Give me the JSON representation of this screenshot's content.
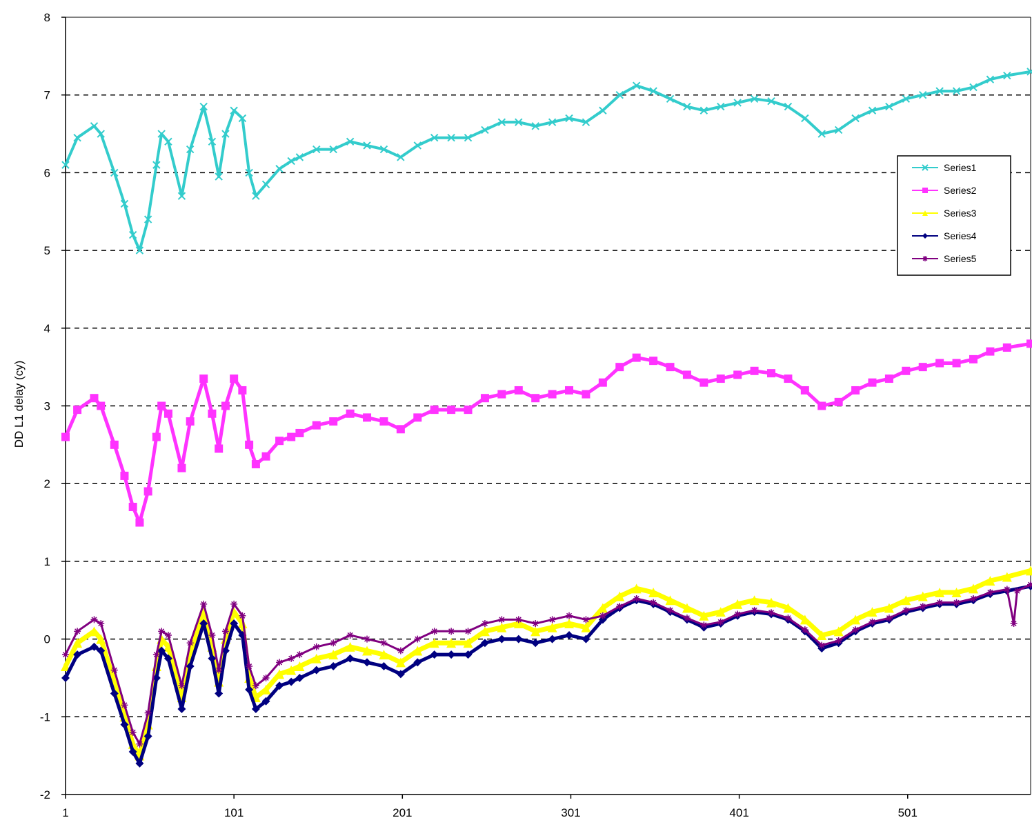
{
  "chart_data": {
    "type": "line",
    "title": "",
    "xlabel": "",
    "ylabel": "DD L1 delay (cy)",
    "xlim": [
      1,
      574
    ],
    "ylim": [
      -2,
      8
    ],
    "x_ticks": [
      1,
      101,
      201,
      301,
      401,
      501
    ],
    "x_tick_labels": [
      "1",
      "101",
      "201",
      "301",
      "401",
      "501"
    ],
    "y_ticks": [
      -2,
      -1,
      0,
      1,
      2,
      3,
      4,
      5,
      6,
      7,
      8
    ],
    "y_tick_labels": [
      "-2",
      "-1",
      "0",
      "1",
      "2",
      "3",
      "4",
      "5",
      "6",
      "7",
      "8"
    ],
    "grid": "horizontal dashed",
    "legend_position": "right",
    "series": [
      {
        "name": "Series1",
        "color": "#33cccc",
        "marker": "cross",
        "x": [
          1,
          8,
          18,
          22,
          30,
          36,
          41,
          45,
          50,
          55,
          58,
          62,
          70,
          75,
          83,
          88,
          92,
          96,
          101,
          106,
          110,
          114,
          120,
          128,
          135,
          140,
          150,
          160,
          170,
          180,
          190,
          200,
          210,
          220,
          230,
          240,
          250,
          260,
          270,
          280,
          290,
          300,
          310,
          320,
          330,
          340,
          350,
          360,
          370,
          380,
          390,
          400,
          410,
          420,
          430,
          440,
          450,
          460,
          470,
          480,
          490,
          500,
          510,
          520,
          530,
          540,
          550,
          560,
          574
        ],
        "y": [
          6.1,
          6.45,
          6.6,
          6.5,
          6.0,
          5.6,
          5.2,
          5.0,
          5.4,
          6.1,
          6.5,
          6.4,
          5.7,
          6.3,
          6.85,
          6.4,
          5.95,
          6.5,
          6.8,
          6.7,
          6.0,
          5.7,
          5.85,
          6.05,
          6.15,
          6.2,
          6.3,
          6.3,
          6.4,
          6.35,
          6.3,
          6.2,
          6.35,
          6.45,
          6.45,
          6.45,
          6.55,
          6.65,
          6.65,
          6.6,
          6.65,
          6.7,
          6.65,
          6.8,
          7.0,
          7.12,
          7.05,
          6.95,
          6.85,
          6.8,
          6.85,
          6.9,
          6.95,
          6.92,
          6.85,
          6.7,
          6.5,
          6.55,
          6.7,
          6.8,
          6.85,
          6.95,
          7.0,
          7.05,
          7.05,
          7.1,
          7.2,
          7.25,
          7.3
        ]
      },
      {
        "name": "Series2",
        "color": "#ff33ff",
        "marker": "square",
        "x": [
          1,
          8,
          18,
          22,
          30,
          36,
          41,
          45,
          50,
          55,
          58,
          62,
          70,
          75,
          83,
          88,
          92,
          96,
          101,
          106,
          110,
          114,
          120,
          128,
          135,
          140,
          150,
          160,
          170,
          180,
          190,
          200,
          210,
          220,
          230,
          240,
          250,
          260,
          270,
          280,
          290,
          300,
          310,
          320,
          330,
          340,
          350,
          360,
          370,
          380,
          390,
          400,
          410,
          420,
          430,
          440,
          450,
          460,
          470,
          480,
          490,
          500,
          510,
          520,
          530,
          540,
          550,
          560,
          574
        ],
        "y": [
          2.6,
          2.95,
          3.1,
          3.0,
          2.5,
          2.1,
          1.7,
          1.5,
          1.9,
          2.6,
          3.0,
          2.9,
          2.2,
          2.8,
          3.35,
          2.9,
          2.45,
          3.0,
          3.35,
          3.2,
          2.5,
          2.25,
          2.35,
          2.55,
          2.6,
          2.65,
          2.75,
          2.8,
          2.9,
          2.85,
          2.8,
          2.7,
          2.85,
          2.95,
          2.95,
          2.95,
          3.1,
          3.15,
          3.2,
          3.1,
          3.15,
          3.2,
          3.15,
          3.3,
          3.5,
          3.62,
          3.58,
          3.5,
          3.4,
          3.3,
          3.35,
          3.4,
          3.45,
          3.42,
          3.35,
          3.2,
          3.0,
          3.05,
          3.2,
          3.3,
          3.35,
          3.45,
          3.5,
          3.55,
          3.55,
          3.6,
          3.7,
          3.75,
          3.8
        ]
      },
      {
        "name": "Series3",
        "color": "#ffff00",
        "marker": "triangle",
        "x": [
          1,
          8,
          18,
          22,
          30,
          36,
          41,
          45,
          50,
          55,
          58,
          62,
          70,
          75,
          83,
          88,
          92,
          96,
          101,
          106,
          110,
          114,
          120,
          128,
          135,
          140,
          150,
          160,
          170,
          180,
          190,
          200,
          210,
          220,
          230,
          240,
          250,
          260,
          270,
          280,
          290,
          300,
          310,
          320,
          330,
          340,
          350,
          360,
          370,
          380,
          390,
          400,
          410,
          420,
          430,
          440,
          450,
          460,
          470,
          480,
          490,
          500,
          510,
          520,
          530,
          540,
          550,
          560,
          574
        ],
        "y": [
          -0.35,
          -0.05,
          0.1,
          0.0,
          -0.55,
          -1.0,
          -1.35,
          -1.5,
          -1.1,
          -0.35,
          0.0,
          -0.1,
          -0.75,
          -0.2,
          0.35,
          -0.1,
          -0.55,
          0.0,
          0.35,
          0.2,
          -0.5,
          -0.75,
          -0.65,
          -0.45,
          -0.4,
          -0.35,
          -0.25,
          -0.2,
          -0.1,
          -0.15,
          -0.2,
          -0.3,
          -0.15,
          -0.05,
          -0.05,
          -0.05,
          0.1,
          0.15,
          0.2,
          0.1,
          0.15,
          0.2,
          0.15,
          0.4,
          0.55,
          0.65,
          0.6,
          0.5,
          0.4,
          0.3,
          0.35,
          0.45,
          0.5,
          0.47,
          0.4,
          0.25,
          0.05,
          0.1,
          0.25,
          0.35,
          0.4,
          0.5,
          0.55,
          0.6,
          0.6,
          0.65,
          0.75,
          0.8,
          0.88
        ]
      },
      {
        "name": "Series4",
        "color": "#000080",
        "marker": "diamond",
        "x": [
          1,
          8,
          18,
          22,
          30,
          36,
          41,
          45,
          50,
          55,
          58,
          62,
          70,
          75,
          83,
          88,
          92,
          96,
          101,
          106,
          110,
          114,
          120,
          128,
          135,
          140,
          150,
          160,
          170,
          180,
          190,
          200,
          210,
          220,
          230,
          240,
          250,
          260,
          270,
          280,
          290,
          300,
          310,
          320,
          330,
          340,
          350,
          360,
          370,
          380,
          390,
          400,
          410,
          420,
          430,
          440,
          450,
          460,
          470,
          480,
          490,
          500,
          510,
          520,
          530,
          540,
          550,
          560,
          574
        ],
        "y": [
          -0.5,
          -0.2,
          -0.1,
          -0.15,
          -0.7,
          -1.1,
          -1.45,
          -1.6,
          -1.25,
          -0.5,
          -0.15,
          -0.25,
          -0.9,
          -0.35,
          0.2,
          -0.25,
          -0.7,
          -0.15,
          0.2,
          0.05,
          -0.65,
          -0.9,
          -0.8,
          -0.6,
          -0.55,
          -0.5,
          -0.4,
          -0.35,
          -0.25,
          -0.3,
          -0.35,
          -0.45,
          -0.3,
          -0.2,
          -0.2,
          -0.2,
          -0.05,
          0.0,
          0.0,
          -0.05,
          0.0,
          0.05,
          0.0,
          0.25,
          0.4,
          0.5,
          0.45,
          0.35,
          0.25,
          0.15,
          0.2,
          0.3,
          0.35,
          0.32,
          0.25,
          0.1,
          -0.12,
          -0.05,
          0.1,
          0.2,
          0.25,
          0.35,
          0.4,
          0.45,
          0.45,
          0.5,
          0.58,
          0.62,
          0.68
        ]
      },
      {
        "name": "Series5",
        "color": "#800080",
        "marker": "star",
        "x": [
          1,
          8,
          18,
          22,
          30,
          36,
          41,
          45,
          50,
          55,
          58,
          62,
          70,
          75,
          83,
          88,
          92,
          96,
          101,
          106,
          110,
          114,
          120,
          128,
          135,
          140,
          150,
          160,
          170,
          180,
          190,
          200,
          210,
          220,
          230,
          240,
          250,
          260,
          270,
          280,
          290,
          300,
          310,
          320,
          330,
          340,
          350,
          360,
          370,
          380,
          390,
          400,
          410,
          420,
          430,
          440,
          450,
          460,
          470,
          480,
          490,
          500,
          510,
          520,
          530,
          540,
          550,
          560,
          564,
          566,
          574
        ],
        "y": [
          -0.2,
          0.1,
          0.25,
          0.2,
          -0.4,
          -0.85,
          -1.2,
          -1.35,
          -0.95,
          -0.2,
          0.1,
          0.05,
          -0.6,
          -0.05,
          0.45,
          0.05,
          -0.4,
          0.1,
          0.45,
          0.3,
          -0.35,
          -0.6,
          -0.5,
          -0.3,
          -0.25,
          -0.2,
          -0.1,
          -0.05,
          0.05,
          0.0,
          -0.05,
          -0.15,
          0.0,
          0.1,
          0.1,
          0.1,
          0.2,
          0.25,
          0.25,
          0.2,
          0.25,
          0.3,
          0.25,
          0.3,
          0.42,
          0.52,
          0.47,
          0.37,
          0.27,
          0.18,
          0.22,
          0.32,
          0.37,
          0.34,
          0.27,
          0.12,
          -0.08,
          -0.02,
          0.12,
          0.22,
          0.27,
          0.37,
          0.42,
          0.47,
          0.47,
          0.52,
          0.6,
          0.64,
          0.2,
          0.62,
          0.7
        ]
      }
    ]
  },
  "legend": {
    "items": [
      "Series1",
      "Series2",
      "Series3",
      "Series4",
      "Series5"
    ]
  }
}
